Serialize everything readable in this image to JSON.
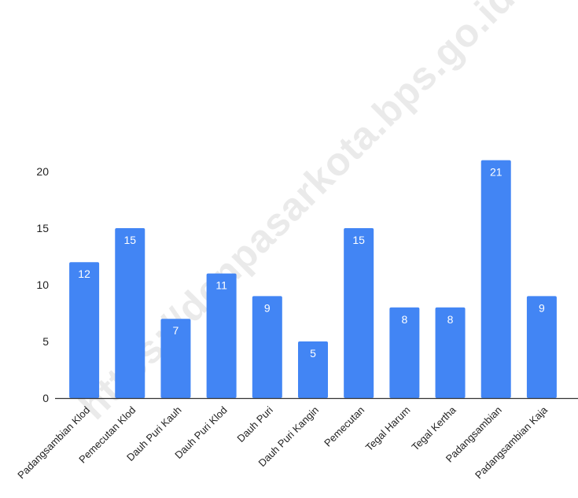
{
  "watermark": "https://denpasarkota.bps.go.id",
  "colors": {
    "bar": "#4285f4",
    "axis": "#333333",
    "label": "#ffffff"
  },
  "chart_data": {
    "type": "bar",
    "title": "",
    "xlabel": "",
    "ylabel": "",
    "categories": [
      "Padangsambian Klod",
      "Pemecutan Klod",
      "Dauh Puri Kauh",
      "Dauh Puri Klod",
      "Dauh Puri",
      "Dauh Puri Kangin",
      "Pemecutan",
      "Tegal Harum",
      "Tegal Kertha",
      "Padangsambian",
      "Padangsambian Kaja"
    ],
    "values": [
      12,
      15,
      7,
      11,
      9,
      5,
      15,
      8,
      8,
      21,
      9
    ],
    "yticks": [
      0,
      5,
      10,
      15,
      20
    ],
    "ylim": [
      0,
      21
    ],
    "grid": false,
    "data_labels": true
  }
}
